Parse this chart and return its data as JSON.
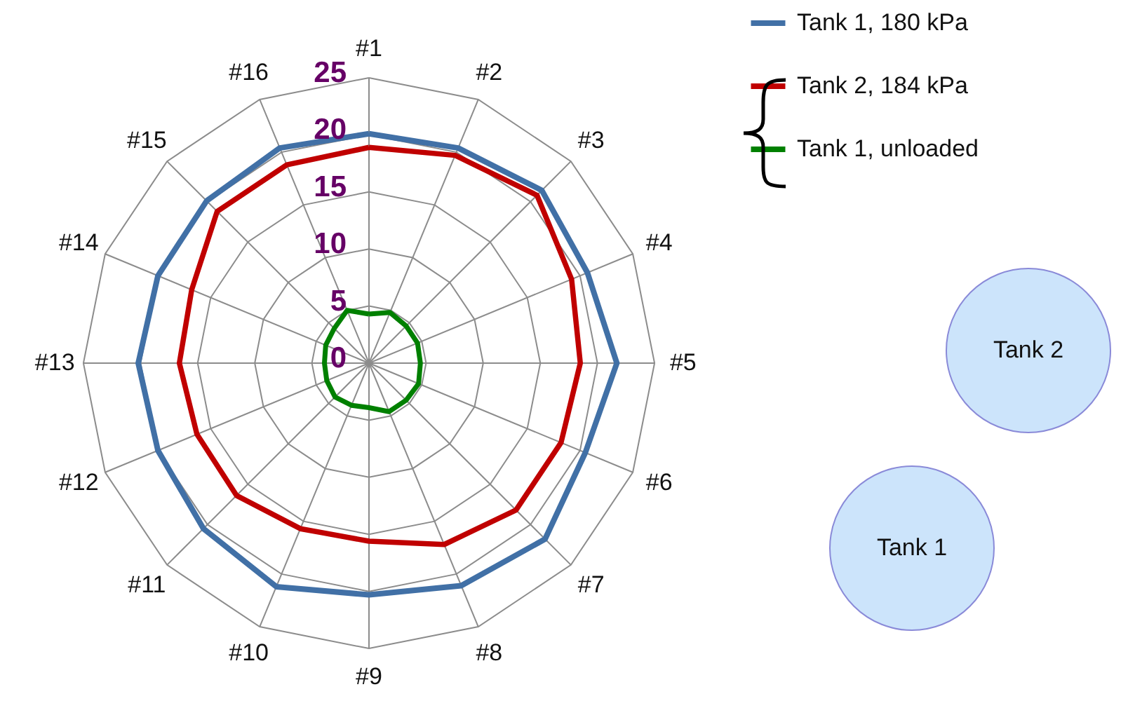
{
  "chart_data": {
    "type": "radar",
    "categories": [
      "#1",
      "#2",
      "#3",
      "#4",
      "#5",
      "#6",
      "#7",
      "#8",
      "#9",
      "#10",
      "#11",
      "#12",
      "#13",
      "#14",
      "#15",
      "#16"
    ],
    "series": [
      {
        "name": "Tank 1, 180 kPa",
        "color": "#4170a6",
        "values": [
          20.1,
          20.4,
          21.4,
          20.7,
          21.7,
          20.5,
          21.8,
          21.1,
          20.3,
          21.2,
          20.5,
          20.0,
          20.2,
          20.0,
          20.1,
          20.4
        ]
      },
      {
        "name": "Tank 2, 184 kPa",
        "color": "#c00000",
        "values": [
          18.9,
          19.7,
          20.8,
          19.2,
          18.5,
          18.2,
          18.2,
          17.2,
          15.6,
          15.7,
          16.4,
          16.3,
          16.6,
          16.8,
          18.8,
          18.8
        ]
      },
      {
        "name": "Tank 1, unloaded",
        "color": "#008000",
        "values": [
          4.3,
          4.8,
          4.6,
          4.6,
          4.5,
          4.7,
          4.6,
          4.6,
          3.9,
          4.0,
          4.2,
          4.0,
          3.9,
          4.1,
          4.3,
          5.0
        ]
      }
    ],
    "ylim": [
      0,
      25
    ],
    "yticks": [
      0,
      5,
      10,
      15,
      20,
      25
    ],
    "grid": true,
    "legend": "top right",
    "annotations": [
      "Tank 2",
      "Tank 1"
    ]
  }
}
